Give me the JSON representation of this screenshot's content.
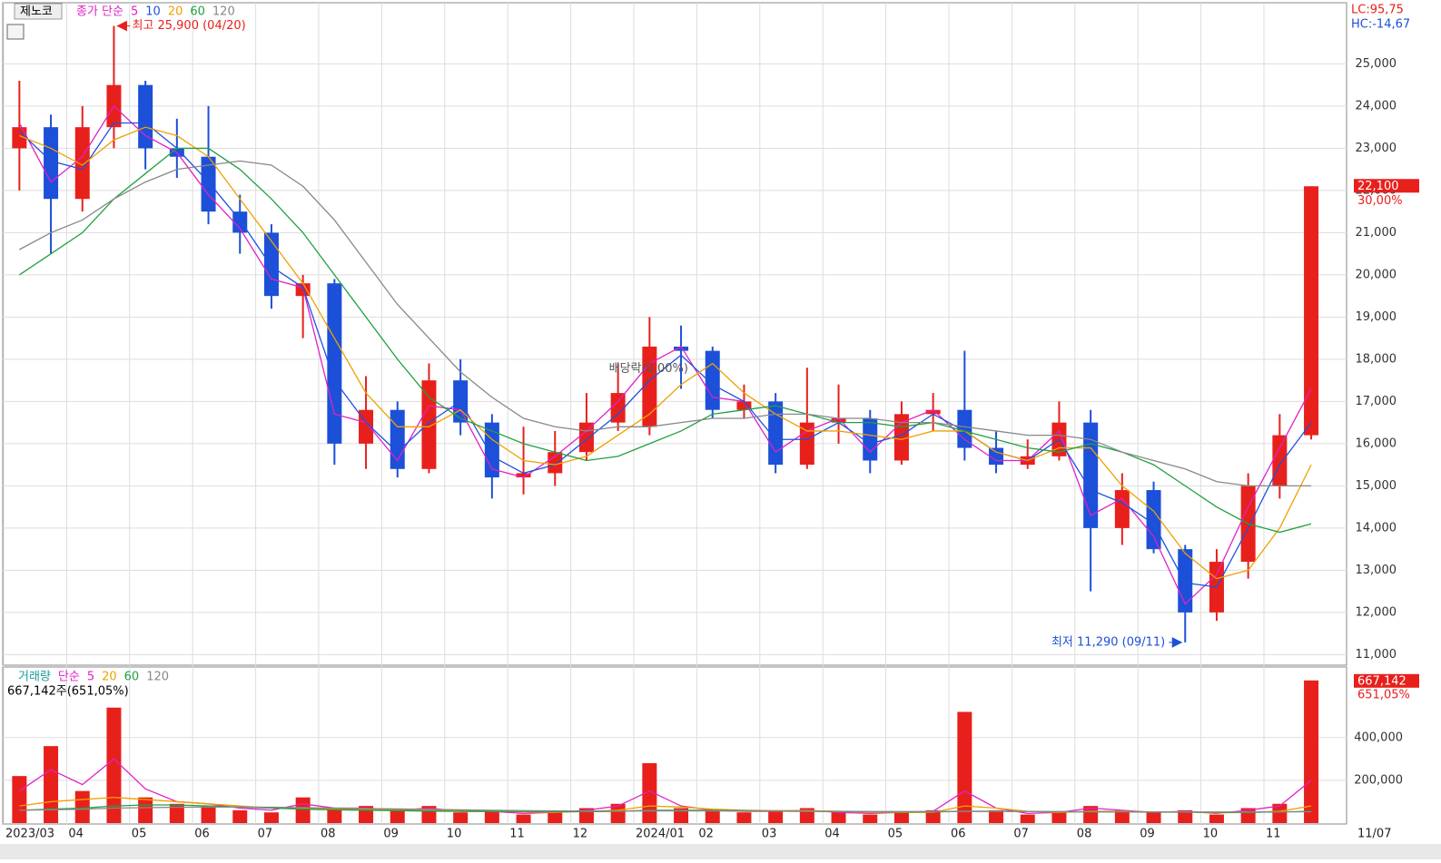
{
  "chart_data": [
    {
      "type": "candlestick",
      "ticker": "제노코",
      "legend_prefix": "종가 단순",
      "categories": [
        "2023/03",
        null,
        "04",
        null,
        "05",
        null,
        "06",
        null,
        "07",
        null,
        "08",
        null,
        "09",
        null,
        "10",
        null,
        "11",
        null,
        "12",
        null,
        "2024/01",
        null,
        "02",
        null,
        "03",
        null,
        "04",
        null,
        "05",
        null,
        "06",
        null,
        "07",
        null,
        "08",
        null,
        "09",
        null,
        "10",
        null,
        "11",
        null
      ],
      "open": [
        23000,
        23500,
        21800,
        23500,
        24500,
        23000,
        22800,
        21500,
        21000,
        19500,
        19800,
        16000,
        16800,
        15400,
        17500,
        16500,
        15200,
        15300,
        15800,
        16500,
        16400,
        18300,
        18200,
        16800,
        17000,
        15500,
        16500,
        16600,
        15600,
        16700,
        16800,
        15900,
        15500,
        15700,
        16500,
        14000,
        14900,
        13500,
        12000,
        13200,
        15000,
        16200
      ],
      "high": [
        24600,
        23800,
        24000,
        25900,
        24600,
        23700,
        24000,
        21900,
        21200,
        20000,
        19900,
        17600,
        17000,
        17900,
        18000,
        16700,
        16400,
        16300,
        17200,
        17900,
        19000,
        18800,
        18300,
        17400,
        17200,
        17800,
        17400,
        16800,
        17000,
        17200,
        18200,
        16300,
        16100,
        17000,
        16800,
        15300,
        15100,
        13600,
        13500,
        15300,
        16700,
        22100
      ],
      "low": [
        22000,
        20500,
        21500,
        23000,
        22500,
        22300,
        21200,
        20500,
        19200,
        18500,
        15500,
        15400,
        15200,
        15300,
        16200,
        14700,
        14800,
        15000,
        15600,
        16300,
        16200,
        17300,
        16600,
        16600,
        15300,
        15400,
        16000,
        15300,
        15500,
        16300,
        15600,
        15300,
        15400,
        15600,
        12500,
        13600,
        13400,
        11290,
        11800,
        12800,
        14700,
        16100
      ],
      "close": [
        23500,
        21800,
        23500,
        24500,
        23000,
        22800,
        21500,
        21000,
        19500,
        19800,
        16000,
        16800,
        15400,
        17500,
        16500,
        15200,
        15300,
        15800,
        16500,
        17200,
        18300,
        18200,
        16800,
        17000,
        15500,
        16500,
        16600,
        15600,
        16700,
        16800,
        15900,
        15500,
        15700,
        16500,
        14000,
        14900,
        13500,
        12000,
        13200,
        15000,
        16200,
        22100
      ],
      "series": [
        {
          "name": "5",
          "color": "#e020c8",
          "values": [
            23600,
            22200,
            22800,
            24000,
            23300,
            22900,
            21900,
            21100,
            19900,
            19700,
            16700,
            16500,
            15600,
            16900,
            16800,
            15400,
            15200,
            15700,
            16300,
            17000,
            17900,
            18300,
            17100,
            17000,
            15800,
            16300,
            16600,
            15800,
            16500,
            16800,
            16100,
            15600,
            15600,
            16300,
            14300,
            14700,
            13800,
            12200,
            12900,
            14500,
            15900,
            17300
          ]
        },
        {
          "name": "10",
          "color": "#2050e0",
          "values": [
            23400,
            22700,
            22500,
            23600,
            23600,
            23000,
            22200,
            21300,
            20200,
            19700,
            17500,
            16500,
            15800,
            16500,
            17000,
            15700,
            15300,
            15500,
            16100,
            16700,
            17500,
            18100,
            17400,
            17000,
            16100,
            16100,
            16500,
            16000,
            16200,
            16700,
            16300,
            15800,
            15600,
            16100,
            14900,
            14600,
            14100,
            12700,
            12600,
            14000,
            15500,
            16500
          ]
        },
        {
          "name": "20",
          "color": "#f0a000",
          "values": [
            23300,
            23000,
            22600,
            23200,
            23500,
            23300,
            22800,
            21800,
            20800,
            19800,
            18500,
            17200,
            16400,
            16400,
            16800,
            16100,
            15600,
            15500,
            15700,
            16200,
            16700,
            17400,
            17900,
            17200,
            16700,
            16300,
            16300,
            16200,
            16100,
            16300,
            16300,
            15800,
            15600,
            15900,
            15900,
            15000,
            14400,
            13400,
            12800,
            13000,
            14000,
            15500
          ]
        },
        {
          "name": "60",
          "color": "#20a040",
          "values": [
            20000,
            20500,
            21000,
            21800,
            22400,
            23000,
            23000,
            22500,
            21800,
            21000,
            20000,
            19000,
            18000,
            17100,
            16600,
            16300,
            16000,
            15800,
            15600,
            15700,
            16000,
            16300,
            16700,
            16800,
            16900,
            16700,
            16500,
            16500,
            16400,
            16500,
            16300,
            16100,
            15900,
            15800,
            16000,
            15800,
            15500,
            15000,
            14500,
            14100,
            13900,
            14100
          ]
        },
        {
          "name": "120",
          "color": "#888888",
          "values": [
            20600,
            21000,
            21300,
            21800,
            22200,
            22500,
            22600,
            22700,
            22600,
            22100,
            21300,
            20300,
            19300,
            18500,
            17700,
            17100,
            16600,
            16400,
            16300,
            16400,
            16400,
            16500,
            16600,
            16600,
            16700,
            16700,
            16600,
            16600,
            16500,
            16500,
            16400,
            16300,
            16200,
            16200,
            16100,
            15800,
            15600,
            15400,
            15100,
            15000,
            15000,
            15000
          ]
        }
      ],
      "ylim": [
        10750,
        26450
      ],
      "yticks": [
        {
          "value": 11000,
          "label": "11,000"
        },
        {
          "value": 12000,
          "label": "12,000"
        },
        {
          "value": 13000,
          "label": "13,000"
        },
        {
          "value": 14000,
          "label": "14,000"
        },
        {
          "value": 15000,
          "label": "15,000"
        },
        {
          "value": 16000,
          "label": "16,000"
        },
        {
          "value": 17000,
          "label": "17,000"
        },
        {
          "value": 18000,
          "label": "18,000"
        },
        {
          "value": 19000,
          "label": "19,000"
        },
        {
          "value": 20000,
          "label": "20,000"
        },
        {
          "value": 21000,
          "label": "21,000"
        },
        {
          "value": 22000,
          "label": "22,000"
        },
        {
          "value": 23000,
          "label": "23,000"
        },
        {
          "value": 24000,
          "label": "24,000"
        },
        {
          "value": 25000,
          "label": "25,000"
        }
      ],
      "grid": true,
      "up_color": "#e8201c",
      "down_color": "#1c50d8",
      "annotations": {
        "high": "최고 25,900 (04/20)",
        "low": "최저 11,290 (09/11)",
        "dividend": "배당락(0.00%)"
      },
      "lc": "LC:95,75",
      "hc": "HC:-14,67",
      "last_price": {
        "value": 22100,
        "label": "22,100"
      },
      "change_label": "30,00%",
      "date_label": "11/07"
    },
    {
      "type": "bar",
      "legend_prefix": "거래량",
      "legend_method": "단순",
      "color": "#e8201c",
      "values": [
        220000,
        360000,
        150000,
        540000,
        120000,
        90000,
        80000,
        60000,
        50000,
        120000,
        70000,
        80000,
        60000,
        80000,
        50000,
        60000,
        40000,
        50000,
        70000,
        90000,
        280000,
        70000,
        60000,
        50000,
        60000,
        70000,
        50000,
        40000,
        50000,
        60000,
        520000,
        60000,
        40000,
        50000,
        80000,
        60000,
        50000,
        60000,
        40000,
        70000,
        90000,
        667142
      ],
      "series": [
        {
          "name": "5",
          "color": "#e020c8",
          "values": [
            150000,
            250000,
            180000,
            300000,
            160000,
            100000,
            90000,
            70000,
            60000,
            90000,
            70000,
            70000,
            60000,
            70000,
            55000,
            55000,
            45000,
            50000,
            60000,
            80000,
            150000,
            80000,
            60000,
            55000,
            55000,
            60000,
            50000,
            45000,
            50000,
            55000,
            150000,
            70000,
            45000,
            50000,
            70000,
            60000,
            50000,
            55000,
            45000,
            60000,
            80000,
            200000
          ]
        },
        {
          "name": "20",
          "color": "#f0a000",
          "values": [
            80000,
            100000,
            110000,
            120000,
            110000,
            100000,
            90000,
            80000,
            70000,
            70000,
            65000,
            65000,
            60000,
            60000,
            58000,
            55000,
            52000,
            50000,
            55000,
            60000,
            80000,
            75000,
            65000,
            60000,
            58000,
            58000,
            55000,
            50000,
            50000,
            50000,
            80000,
            70000,
            55000,
            50000,
            55000,
            55000,
            52000,
            52000,
            48000,
            50000,
            55000,
            80000
          ]
        },
        {
          "name": "60",
          "color": "#20a040",
          "values": [
            60000,
            65000,
            70000,
            80000,
            85000,
            85000,
            80000,
            75000,
            70000,
            65000,
            62000,
            60000,
            58000,
            56000,
            55000,
            55000,
            54000,
            53000,
            53000,
            55000,
            60000,
            60000,
            60000,
            58000,
            56000,
            55000,
            54000,
            53000,
            52000,
            52000,
            55000,
            55000,
            54000,
            53000,
            52000,
            52000,
            51000,
            51000,
            50000,
            50000,
            52000,
            55000
          ]
        },
        {
          "name": "120",
          "color": "#888888",
          "values": [
            60000,
            62000,
            65000,
            70000,
            72000,
            74000,
            75000,
            75000,
            74000,
            72000,
            70000,
            68000,
            66000,
            64000,
            62000,
            60000,
            58000,
            57000,
            56000,
            56000,
            57000,
            57000,
            57000,
            56000,
            56000,
            55000,
            55000,
            54000,
            54000,
            54000,
            55000,
            55000,
            54000,
            54000,
            53000,
            53000,
            52000,
            52000,
            52000,
            52000,
            52000,
            53000
          ]
        }
      ],
      "ylim": [
        0,
        730000
      ],
      "yticks": [
        {
          "value": 200000,
          "label": "200,000"
        },
        {
          "value": 400000,
          "label": "400,000"
        }
      ],
      "value_label": "667,142주(651,05%)",
      "last_volume": {
        "value": 667142,
        "label": "667,142"
      },
      "change_label": "651,05%"
    }
  ]
}
